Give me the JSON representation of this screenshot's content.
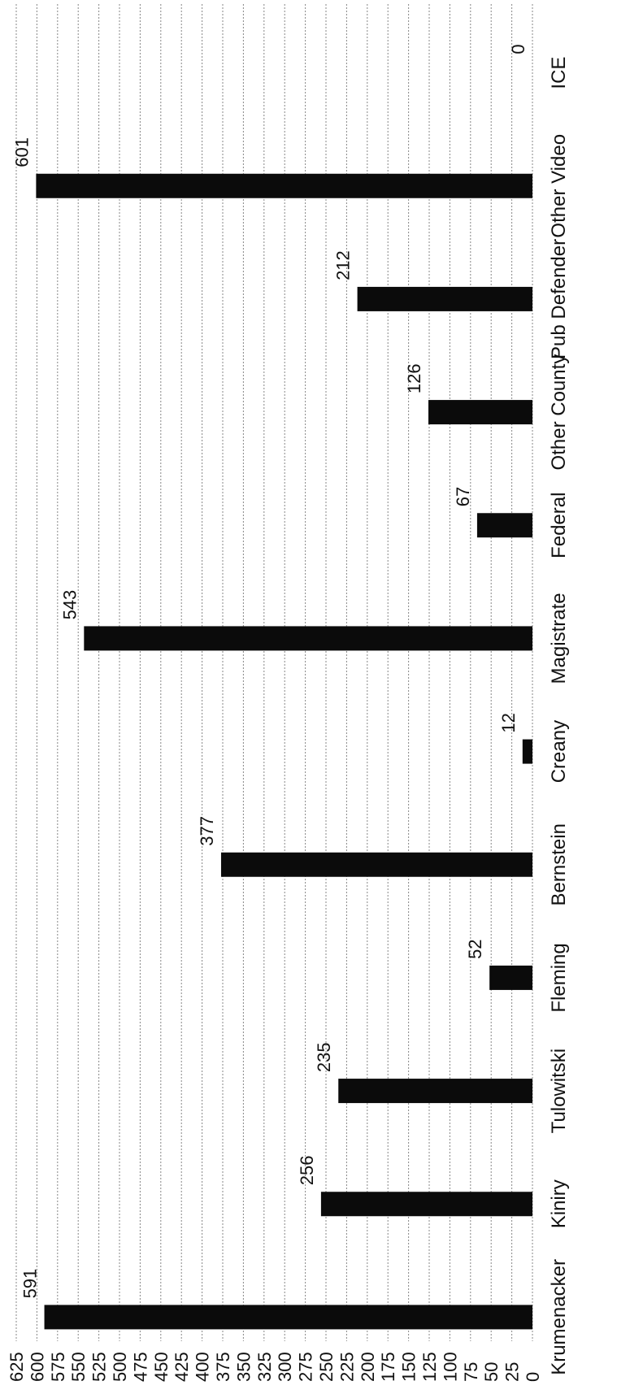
{
  "chart_data": {
    "type": "bar",
    "orientation": "rotated",
    "categories": [
      "Krumenacker",
      "Kiniry",
      "Tulowitski",
      "Fleming",
      "Bernstein",
      "Creany",
      "Magistrate",
      "Federal",
      "Other County",
      "Pub Defender",
      "Other Video",
      "ICE"
    ],
    "values": [
      591,
      256,
      235,
      52,
      377,
      12,
      543,
      67,
      126,
      212,
      601,
      0
    ],
    "value_labels": [
      "591",
      "256",
      "235",
      "52",
      "377",
      "12",
      "543",
      "67",
      "126",
      "212",
      "601",
      "0"
    ],
    "ylim": [
      0,
      625
    ],
    "y_ticks": [
      "0",
      "25",
      "50",
      "75",
      "100",
      "125",
      "150",
      "175",
      "200",
      "225",
      "250",
      "275",
      "300",
      "325",
      "350",
      "375",
      "400",
      "425",
      "450",
      "475",
      "500",
      "525",
      "550",
      "575",
      "600",
      "625"
    ],
    "title": "",
    "xlabel": "",
    "ylabel": "",
    "grid": true,
    "bar_color": "#0b0b0b"
  }
}
